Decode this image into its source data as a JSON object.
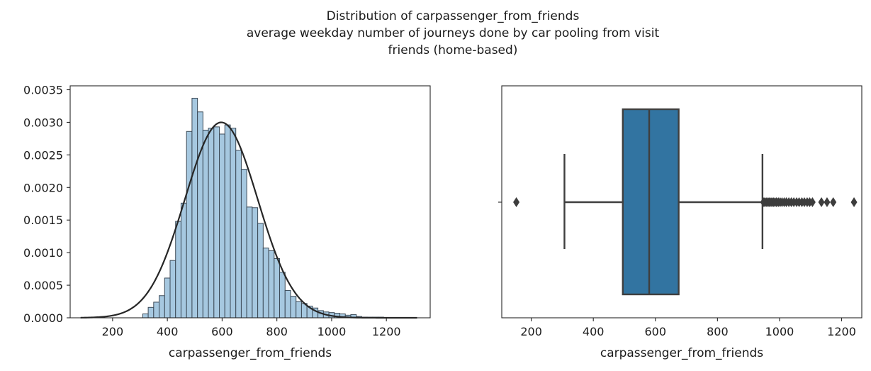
{
  "figure": {
    "title_lines": [
      "Distribution of carpassenger_from_friends",
      "average weekday number of journeys done by car pooling from visit",
      "friends (home-based)"
    ]
  },
  "colors": {
    "hist_fill": "#a6c8e0",
    "hist_edge": "#3c4a57",
    "kde_line": "#262626",
    "box_fill": "#3274a1",
    "box_edge": "#3f3f3f"
  },
  "chart_data": [
    {
      "type": "bar",
      "subtype": "histogram",
      "xlabel": "carpassenger_from_friends",
      "ylabel": "",
      "xlim": [
        45,
        1360
      ],
      "ylim": [
        0,
        0.00356
      ],
      "xticks": [
        200,
        400,
        600,
        800,
        1000,
        1200
      ],
      "yticks": [
        "0.0000",
        "0.0005",
        "0.0010",
        "0.0015",
        "0.0020",
        "0.0025",
        "0.0030",
        "0.0035"
      ],
      "ytick_values": [
        0,
        0.0005,
        0.001,
        0.0015,
        0.002,
        0.0025,
        0.003,
        0.0035
      ],
      "bin_width": 20,
      "bin_starts": [
        310,
        330,
        350,
        370,
        390,
        410,
        430,
        450,
        470,
        490,
        510,
        530,
        550,
        570,
        590,
        610,
        630,
        650,
        670,
        690,
        710,
        730,
        750,
        770,
        790,
        810,
        830,
        850,
        870,
        890,
        910,
        930,
        950,
        970,
        990,
        1010,
        1030,
        1050,
        1070,
        1090,
        1110,
        1130,
        1150,
        1170
      ],
      "values": [
        6e-05,
        0.00016,
        0.00024,
        0.00034,
        0.00061,
        0.00088,
        0.00148,
        0.00176,
        0.00286,
        0.00337,
        0.00316,
        0.00288,
        0.00291,
        0.00293,
        0.00282,
        0.00296,
        0.00291,
        0.00257,
        0.00228,
        0.0017,
        0.00169,
        0.00145,
        0.00107,
        0.00103,
        0.00091,
        0.0007,
        0.00042,
        0.00033,
        0.00025,
        0.00022,
        0.00018,
        0.00015,
        0.00011,
        9e-05,
        8e-05,
        7e-05,
        6e-05,
        4e-05,
        5e-05,
        2e-05,
        1e-05,
        1e-05,
        1e-05,
        1e-05
      ],
      "fit_curve": {
        "kind": "normal",
        "mean": 597,
        "std": 133,
        "x_range": [
          83,
          1312
        ]
      }
    },
    {
      "type": "box",
      "xlabel": "carpassenger_from_friends",
      "xlim": [
        105,
        1265
      ],
      "xticks": [
        200,
        400,
        600,
        800,
        1000,
        1200
      ],
      "stats": {
        "whisker_low": 307,
        "q1": 495,
        "median": 580,
        "q3": 675,
        "whisker_high": 945
      },
      "outliers": [
        152,
        948,
        952,
        957,
        962,
        966,
        970,
        975,
        980,
        985,
        990,
        996,
        1002,
        1008,
        1015,
        1022,
        1030,
        1038,
        1046,
        1055,
        1063,
        1072,
        1080,
        1089,
        1097,
        1106,
        1135,
        1153,
        1173,
        1240
      ]
    }
  ]
}
